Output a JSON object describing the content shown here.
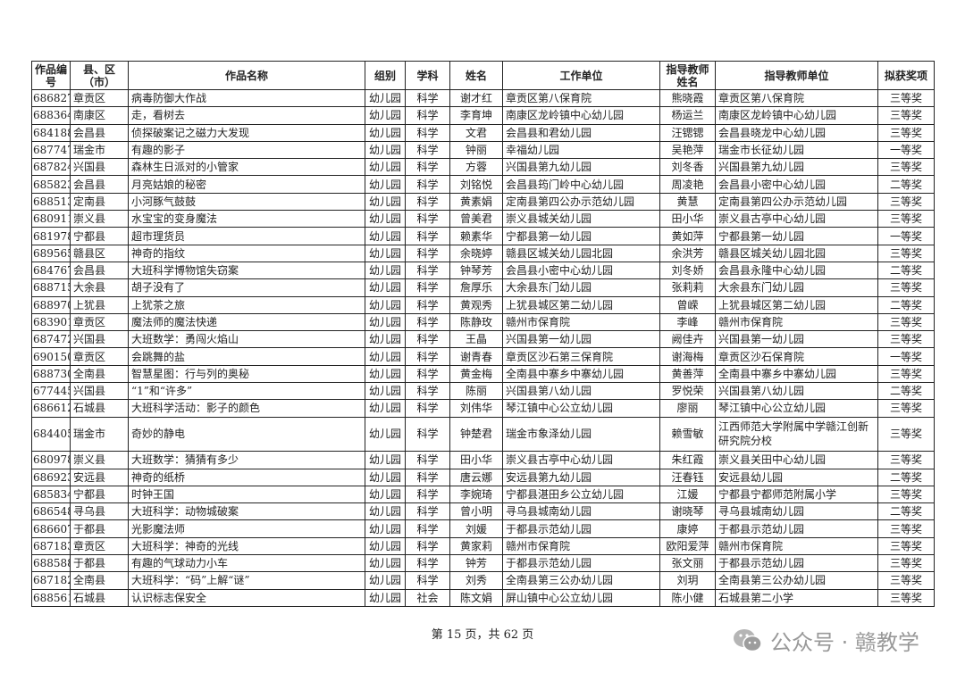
{
  "table": {
    "headers": [
      "作品编号",
      "县、区（市）",
      "作品名称",
      "组别",
      "学科",
      "姓名",
      "工作单位",
      "指导教师姓名",
      "指导教师单位",
      "拟获奖项"
    ],
    "rows": [
      [
        "686827",
        "章贡区",
        "病毒防御大作战",
        "幼儿园",
        "科学",
        "谢才红",
        "章贡区第八保育院",
        "熊晓霞",
        "章贡区第八保育院",
        "三等奖"
      ],
      [
        "688364",
        "南康区",
        "走，看树去",
        "幼儿园",
        "科学",
        "李育坤",
        "南康区龙岭镇中心幼儿园",
        "杨运兰",
        "南康区龙岭镇中心幼儿园",
        "三等奖"
      ],
      [
        "684188",
        "会昌县",
        "侦探破案记之磁力大发现",
        "幼儿园",
        "科学",
        "文君",
        "会昌县和君幼儿园",
        "汪锶锶",
        "会昌县晓龙中心幼儿园",
        "三等奖"
      ],
      [
        "687747",
        "瑞金市",
        "有趣的影子",
        "幼儿园",
        "科学",
        "钟丽",
        "幸福幼儿园",
        "吴艳萍",
        "瑞金市长征幼儿园",
        "一等奖"
      ],
      [
        "687824",
        "兴国县",
        "森林生日派对的小管家",
        "幼儿园",
        "科学",
        "方蓉",
        "兴国县第九幼儿园",
        "刘冬香",
        "兴国县第九幼儿园",
        "三等奖"
      ],
      [
        "685823",
        "会昌县",
        "月亮姑娘的秘密",
        "幼儿园",
        "科学",
        "刘铭悦",
        "会昌县筠门岭中心幼儿园",
        "周凌艳",
        "会昌县小密中心幼儿园",
        "二等奖"
      ],
      [
        "688513",
        "定南县",
        "小河豚气鼓鼓",
        "幼儿园",
        "科学",
        "黄素娟",
        "定南县第四公办示范幼儿园",
        "黄慧",
        "定南县第四公办示范幼儿园",
        "三等奖"
      ],
      [
        "680911",
        "崇义县",
        "水宝宝的变身魔法",
        "幼儿园",
        "科学",
        "曾美君",
        "崇义县城关幼儿园",
        "田小华",
        "崇义县古亭中心幼儿园",
        "三等奖"
      ],
      [
        "681978",
        "宁都县",
        "超市理货员",
        "幼儿园",
        "科学",
        "赖素华",
        "宁都县第一幼儿园",
        "黄如萍",
        "宁都县第一幼儿园",
        "一等奖"
      ],
      [
        "689565",
        "赣县区",
        "神奇的指纹",
        "幼儿园",
        "科学",
        "余晓婷",
        "赣县区城关幼儿园北园",
        "余洪芳",
        "赣县区城关幼儿园北园",
        "三等奖"
      ],
      [
        "684767",
        "会昌县",
        "大班科学博物馆失窃案",
        "幼儿园",
        "科学",
        "钟琴芳",
        "会昌县小密中心幼儿园",
        "刘冬娇",
        "会昌县永隆中心幼儿园",
        "二等奖"
      ],
      [
        "688715",
        "大余县",
        "胡子没有了",
        "幼儿园",
        "科学",
        "詹厚乐",
        "大余县东门幼儿园",
        "张莉莉",
        "大余县东门幼儿园",
        "三等奖"
      ],
      [
        "688970",
        "上犹县",
        "上犹茶之旅",
        "幼儿园",
        "科学",
        "黄观秀",
        "上犹县城区第二幼儿园",
        "曾嵘",
        "上犹县城区第二幼儿园",
        "二等奖"
      ],
      [
        "683901",
        "章贡区",
        "魔法师的魔法快递",
        "幼儿园",
        "科学",
        "陈静玫",
        "赣州市保育院",
        "李峰",
        "赣州市保育院",
        "三等奖"
      ],
      [
        "687472",
        "兴国县",
        "大班数学：勇闯火焰山",
        "幼儿园",
        "科学",
        "王晶",
        "兴国县第一幼儿园",
        "阙佳卉",
        "兴国县第一幼儿园",
        "三等奖"
      ],
      [
        "690150",
        "章贡区",
        "会跳舞的盐",
        "幼儿园",
        "科学",
        "谢青春",
        "章贡区沙石第三保育院",
        "谢海梅",
        "章贡区沙石保育院",
        "一等奖"
      ],
      [
        "688730",
        "全南县",
        "智慧星图：行与列的奥秘",
        "幼儿园",
        "科学",
        "黄金梅",
        "全南县中寨乡中寨幼儿园",
        "黄善萍",
        "全南县中寨乡中寨幼儿园",
        "三等奖"
      ],
      [
        "677445",
        "兴国县",
        "“1”和“许多”",
        "幼儿园",
        "科学",
        "陈丽",
        "兴国县第八幼儿园",
        "罗悦荣",
        "兴国县第八幼儿园",
        "二等奖"
      ],
      [
        "686612",
        "石城县",
        "大班科学活动：影子的颜色",
        "幼儿园",
        "科学",
        "刘伟华",
        "琴江镇中心公立幼儿园",
        "廖丽",
        "琴江镇中心公立幼儿园",
        "三等奖"
      ],
      [
        "684405",
        "瑞金市",
        "奇妙的静电",
        "幼儿园",
        "科学",
        "钟楚君",
        "瑞金市象泽幼儿园",
        "赖雪敏",
        "江西师范大学附属中学赣江创新研究院分校",
        "三等奖"
      ],
      [
        "680978",
        "崇义县",
        "大班数学：猜猜有多少",
        "幼儿园",
        "科学",
        "田小华",
        "崇义县古亭中心幼儿园",
        "朱红霞",
        "崇义县关田中心幼儿园",
        "三等奖"
      ],
      [
        "686923",
        "安远县",
        "神奇的纸桥",
        "幼儿园",
        "科学",
        "唐云娜",
        "安远县第九幼儿园",
        "汪春钰",
        "安远县幼儿园",
        "二等奖"
      ],
      [
        "685834",
        "宁都县",
        "时钟王国",
        "幼儿园",
        "科学",
        "李婉琦",
        "宁都县湛田乡公立幼儿园",
        "江媛",
        "宁都县宁都师范附属小学",
        "三等奖"
      ],
      [
        "686548",
        "寻乌县",
        "大班科学：动物城破案",
        "幼儿园",
        "科学",
        "曾小明",
        "寻乌县城南幼儿园",
        "谢晓琴",
        "寻乌县城南幼儿园",
        "二等奖"
      ],
      [
        "686607",
        "于都县",
        "光影魔法师",
        "幼儿园",
        "科学",
        "刘媛",
        "于都县示范幼儿园",
        "康婷",
        "于都县示范幼儿园",
        "三等奖"
      ],
      [
        "687183",
        "章贡区",
        "大班科学：神奇的光线",
        "幼儿园",
        "科学",
        "黄家莉",
        "赣州市保育院",
        "欧阳爱萍",
        "赣州市保育院",
        "三等奖"
      ],
      [
        "688588",
        "于都县",
        "有趣的气球动力小车",
        "幼儿园",
        "科学",
        "钟芳",
        "于都县示范幼儿园",
        "张文丽",
        "于都县示范幼儿园",
        "三等奖"
      ],
      [
        "687182",
        "全南县",
        "大班科学：“码”上解“谜”",
        "幼儿园",
        "科学",
        "刘秀",
        "全南县第三公办幼儿园",
        "刘玥",
        "全南县第三公办幼儿园",
        "三等奖"
      ],
      [
        "688561",
        "石城县",
        "认识标志保安全",
        "幼儿园",
        "社会",
        "陈文娟",
        "屏山镇中心公立幼儿园",
        "陈小健",
        "石城县第二小学",
        "三等奖"
      ]
    ]
  },
  "footer": {
    "page_label": "第 15 页，共 62 页"
  },
  "watermark": {
    "text": "公众号 · 赣教学",
    "icon": "wechat-icon"
  }
}
